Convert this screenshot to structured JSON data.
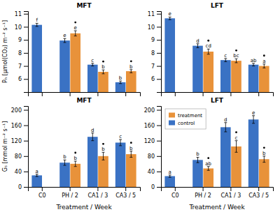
{
  "chart_data": [
    {
      "type": "bar",
      "title": "MFT",
      "categories": [
        "C0",
        "PH / 2",
        "CA1 / 3",
        "CA3 / 5"
      ],
      "ylabel": "Pₙ [μmol(CO₂) m⁻² s⁻¹]",
      "ylim": [
        5.0,
        11.2
      ],
      "yticks": [
        6,
        7,
        8,
        9,
        10,
        11
      ],
      "tick_labels": "y",
      "series": [
        {
          "name": "control",
          "color": "#3A72C4",
          "values": [
            10.15,
            8.95,
            7.1,
            5.75
          ],
          "errors": [
            0.12,
            0.15,
            0.1,
            0.1
          ],
          "labels": [
            "f",
            "e",
            "c",
            "b"
          ]
        },
        {
          "name": "treatment",
          "color": "#E8923A",
          "values": [
            null,
            9.5,
            6.55,
            6.6
          ],
          "errors": [
            null,
            0.2,
            0.15,
            0.12
          ],
          "labels": [
            null,
            "e",
            "b",
            "b"
          ],
          "marker": "dot"
        }
      ]
    },
    {
      "type": "bar",
      "title": "LFT",
      "categories": [
        "C0",
        "PH / 2",
        "CA1 / 3",
        "CA3 / 5"
      ],
      "ylim": [
        5.0,
        11.2
      ],
      "yticks": [
        6,
        7,
        8,
        9,
        10,
        11
      ],
      "tick_labels": "y",
      "series": [
        {
          "name": "control",
          "color": "#3A72C4",
          "values": [
            10.65,
            8.55,
            7.45,
            7.1
          ],
          "errors": [
            0.1,
            0.15,
            0.12,
            0.1
          ],
          "labels": [
            "e",
            "d",
            "c",
            "ab"
          ]
        },
        {
          "name": "treatment",
          "color": "#E8923A",
          "values": [
            null,
            8.1,
            7.4,
            7.0
          ],
          "errors": [
            null,
            0.2,
            0.15,
            0.15
          ],
          "labels": [
            null,
            "cd",
            "bc",
            "a"
          ],
          "marker": "dot"
        }
      ]
    },
    {
      "type": "bar",
      "title": "MFT",
      "categories": [
        "C0",
        "PH / 2",
        "CA1 / 3",
        "CA3 / 5"
      ],
      "xlabel": "Treatment / Week",
      "ylabel": "Gₛ [mmol m⁻² s⁻¹]",
      "ylim": [
        0,
        210
      ],
      "yticks": [
        0,
        40,
        80,
        120,
        160,
        200
      ],
      "series": [
        {
          "name": "control",
          "color": "#3A72C4",
          "values": [
            30,
            63,
            130,
            115
          ],
          "errors": [
            3,
            7,
            10,
            8
          ],
          "labels": [
            "a",
            "b",
            "d",
            "c"
          ]
        },
        {
          "name": "treatment",
          "color": "#E8923A",
          "values": [
            null,
            60,
            80,
            85
          ],
          "errors": [
            null,
            7,
            10,
            8
          ],
          "labels": [
            null,
            "b",
            "b",
            "b"
          ],
          "marker": "dot"
        }
      ]
    },
    {
      "type": "bar",
      "title": "LFT",
      "categories": [
        "C0",
        "PH / 2",
        "CA1 / 3",
        "CA3 / 5"
      ],
      "xlabel": "Treatment / Week",
      "ylim": [
        0,
        210
      ],
      "yticks": [
        0,
        40,
        80,
        120,
        160,
        200
      ],
      "legend": "upper left",
      "series": [
        {
          "name": "control",
          "color": "#3A72C4",
          "values": [
            28,
            70,
            155,
            175
          ],
          "errors": [
            3,
            7,
            12,
            10
          ],
          "labels": [
            "a",
            "b",
            "d",
            "e"
          ]
        },
        {
          "name": "treatment",
          "color": "#E8923A",
          "values": [
            null,
            48,
            105,
            72
          ],
          "errors": [
            null,
            5,
            15,
            8
          ],
          "labels": [
            null,
            "ab",
            "c",
            "b"
          ],
          "marker": "dot"
        }
      ]
    }
  ]
}
